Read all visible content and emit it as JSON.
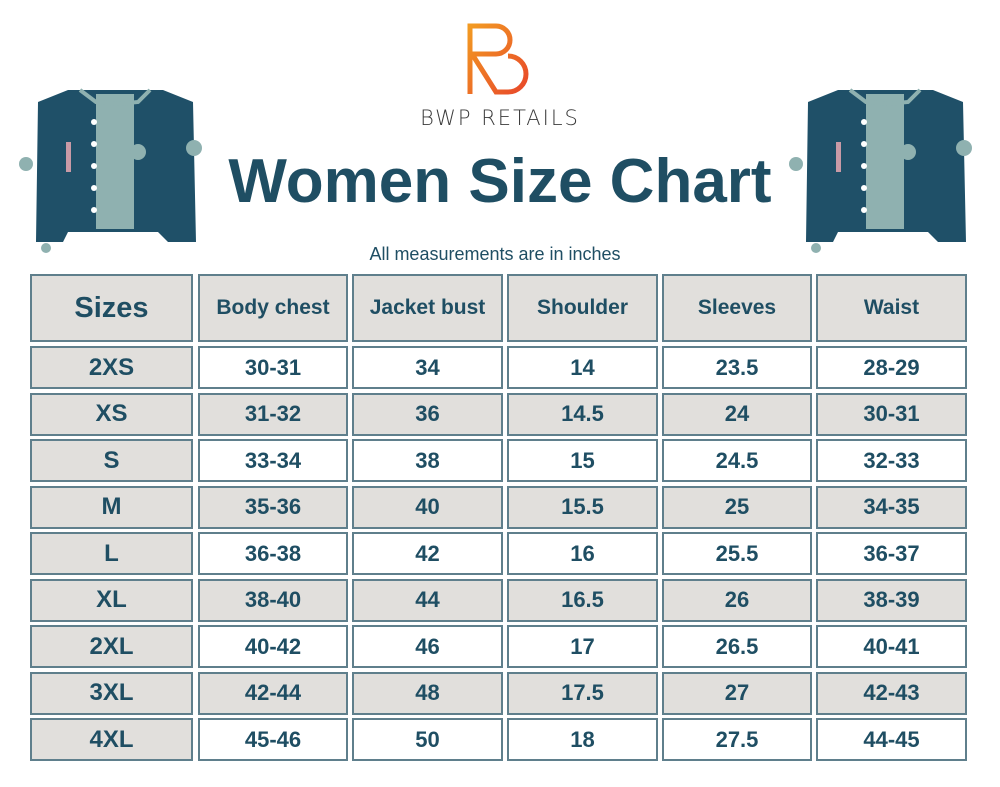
{
  "brand": {
    "name": "BWP RETAILS",
    "logo_letter": "B"
  },
  "title": "Women Size Chart",
  "subtitle": "All measurements are in inches",
  "colors": {
    "primary": "#1f4e63",
    "header_bg": "#e1dfdc",
    "border": "#5f7f8c",
    "logo": "#f08a24"
  },
  "chart_data": {
    "type": "table",
    "title": "Women Size Chart",
    "subtitle": "All measurements are in inches",
    "columns": [
      "Sizes",
      "Body chest",
      "Jacket bust",
      "Shoulder",
      "Sleeves",
      "Waist"
    ],
    "rows": [
      [
        "2XS",
        "30-31",
        "34",
        "14",
        "23.5",
        "28-29"
      ],
      [
        "XS",
        "31-32",
        "36",
        "14.5",
        "24",
        "30-31"
      ],
      [
        "S",
        "33-34",
        "38",
        "15",
        "24.5",
        "32-33"
      ],
      [
        "M",
        "35-36",
        "40",
        "15.5",
        "25",
        "34-35"
      ],
      [
        "L",
        "36-38",
        "42",
        "16",
        "25.5",
        "36-37"
      ],
      [
        "XL",
        "38-40",
        "44",
        "16.5",
        "26",
        "38-39"
      ],
      [
        "2XL",
        "40-42",
        "46",
        "17",
        "26.5",
        "40-41"
      ],
      [
        "3XL",
        "42-44",
        "48",
        "17.5",
        "27",
        "42-43"
      ],
      [
        "4XL",
        "45-46",
        "50",
        "18",
        "27.5",
        "44-45"
      ]
    ]
  }
}
